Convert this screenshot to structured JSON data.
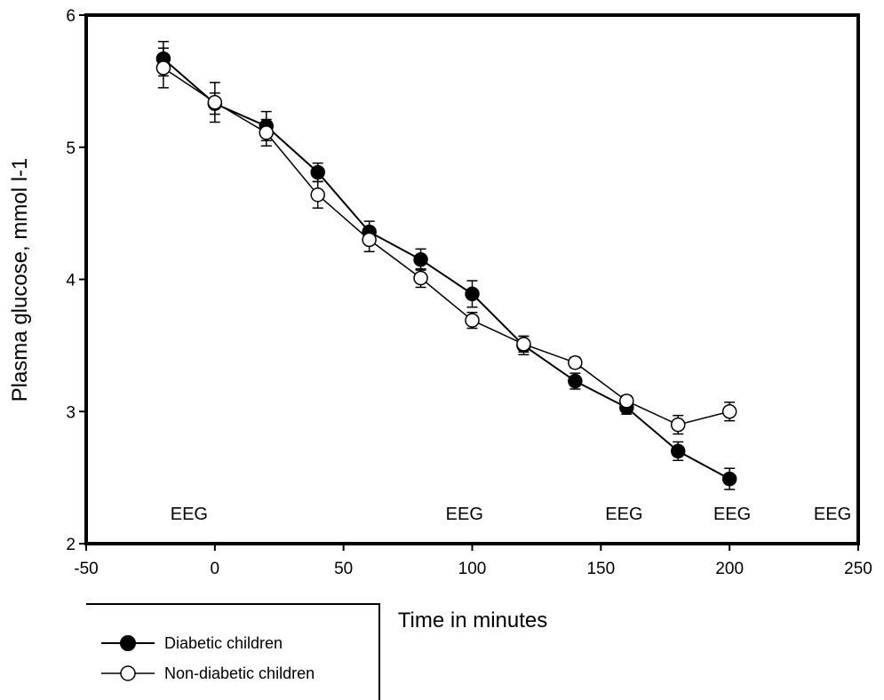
{
  "chart_data": {
    "type": "line",
    "xlabel": "Time in minutes",
    "ylabel": "Plasma glucose, mmol l-1",
    "xlim": [
      -50,
      250
    ],
    "ylim": [
      2,
      6
    ],
    "xticks": [
      -50,
      0,
      50,
      100,
      150,
      200,
      250
    ],
    "yticks": [
      2,
      3,
      4,
      5,
      6
    ],
    "grid": false,
    "legend_position": "bottom-left",
    "series": [
      {
        "name": "Diabetic children",
        "marker": "filled-circle",
        "color": "#000000",
        "x": [
          -20,
          0,
          20,
          40,
          60,
          80,
          100,
          120,
          140,
          160,
          180,
          200
        ],
        "y": [
          5.67,
          5.33,
          5.16,
          4.81,
          4.36,
          4.15,
          3.89,
          3.5,
          3.23,
          3.03,
          2.7,
          2.49
        ],
        "err": [
          0.13,
          0.08,
          0.11,
          0.07,
          0.08,
          0.08,
          0.1,
          0.07,
          0.06,
          0.05,
          0.07,
          0.08
        ]
      },
      {
        "name": "Non-diabetic children",
        "marker": "open-circle",
        "color": "#000000",
        "x": [
          -20,
          0,
          20,
          40,
          60,
          80,
          100,
          120,
          140,
          160,
          180,
          200
        ],
        "y": [
          5.6,
          5.34,
          5.11,
          4.64,
          4.3,
          4.01,
          3.69,
          3.51,
          3.37,
          3.08,
          2.9,
          3.0
        ],
        "err": [
          0.15,
          0.15,
          0.1,
          0.1,
          0.09,
          0.07,
          0.06,
          0.06,
          0.04,
          0.04,
          0.07,
          0.07
        ]
      }
    ],
    "annotations": [
      {
        "text": "EEG",
        "x": -10,
        "y": 2.23
      },
      {
        "text": "EEG",
        "x": 97,
        "y": 2.23
      },
      {
        "text": "EEG",
        "x": 159,
        "y": 2.23
      },
      {
        "text": "EEG",
        "x": 201,
        "y": 2.23
      },
      {
        "text": "EEG",
        "x": 240,
        "y": 2.23
      }
    ]
  }
}
